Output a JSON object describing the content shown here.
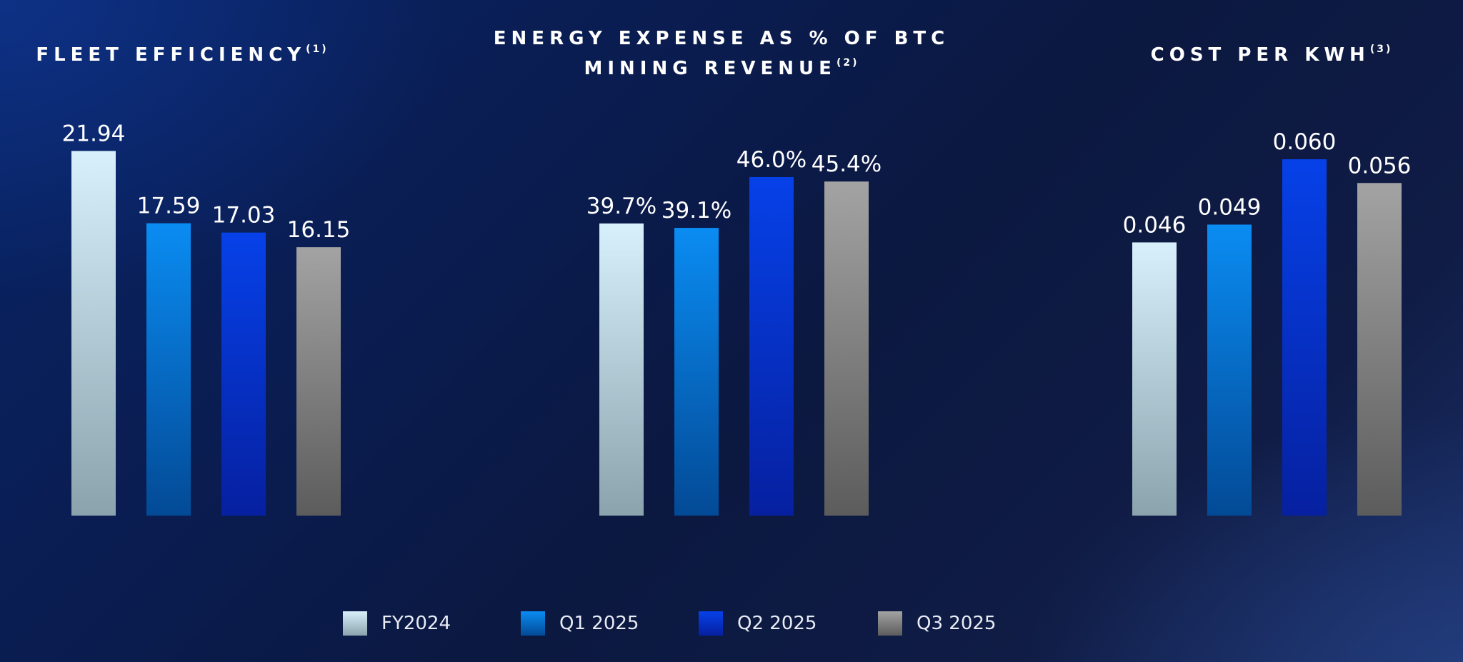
{
  "panels": [
    {
      "title": "FLEET EFFICIENCY",
      "footnote": "(1)"
    },
    {
      "title_line1": "ENERGY EXPENSE AS % OF BTC",
      "title_line2": "MINING REVENUE",
      "footnote": "(2)"
    },
    {
      "title": "COST PER KWH",
      "footnote": "(3)"
    }
  ],
  "legend": [
    {
      "label": "FY2024",
      "color": "#c9e6f2"
    },
    {
      "label": "Q1 2025",
      "color": "#0a84e6"
    },
    {
      "label": "Q2 2025",
      "color": "#0638d6"
    },
    {
      "label": "Q3 2025",
      "color": "#9a9a9a"
    }
  ],
  "chart_data": [
    {
      "type": "bar",
      "title": "FLEET EFFICIENCY(1)",
      "categories": [
        "FY2024",
        "Q1 2025",
        "Q2 2025",
        "Q3 2025"
      ],
      "values": [
        21.94,
        17.59,
        17.03,
        16.15
      ],
      "labels": [
        "21.94",
        "17.59",
        "17.03",
        "16.15"
      ],
      "ylim": [
        0,
        22
      ]
    },
    {
      "type": "bar",
      "title": "ENERGY EXPENSE AS % OF BTC MINING REVENUE(2)",
      "categories": [
        "FY2024",
        "Q1 2025",
        "Q2 2025",
        "Q3 2025"
      ],
      "values": [
        39.7,
        39.1,
        46.0,
        45.4
      ],
      "labels": [
        "39.7%",
        "39.1%",
        "46.0%",
        "45.4%"
      ],
      "ylim": [
        0,
        46
      ]
    },
    {
      "type": "bar",
      "title": "COST PER KWH(3)",
      "categories": [
        "FY2024",
        "Q1 2025",
        "Q2 2025",
        "Q3 2025"
      ],
      "values": [
        0.046,
        0.049,
        0.06,
        0.056
      ],
      "labels": [
        "0.046",
        "0.049",
        "0.060",
        "0.056"
      ],
      "ylim": [
        0,
        0.06
      ]
    }
  ]
}
